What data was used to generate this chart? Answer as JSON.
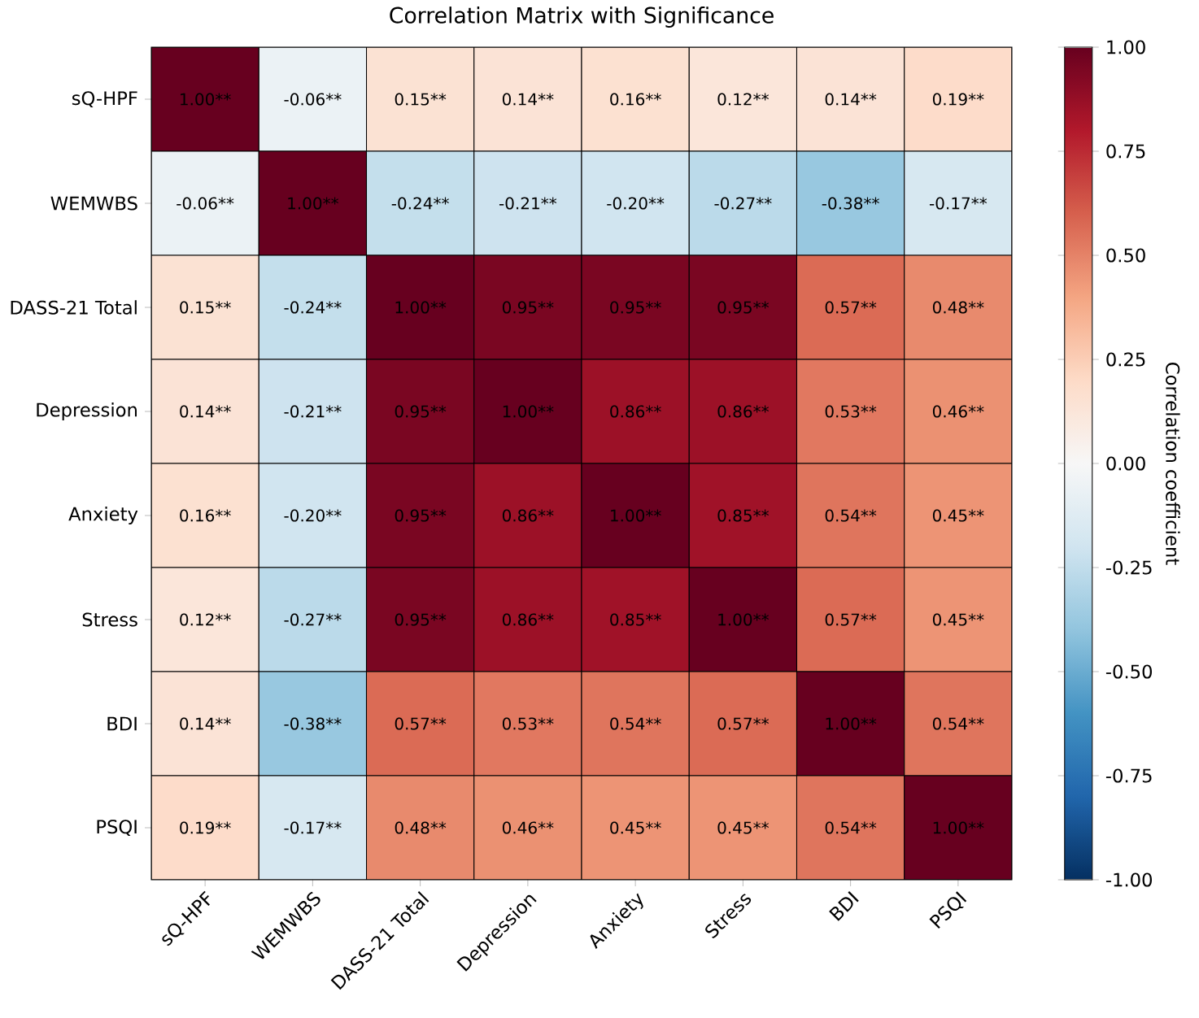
{
  "chart_data": {
    "type": "heatmap",
    "title": "Correlation Matrix with Significance",
    "clabel": "Correlation coefficient",
    "categories": [
      "sQ-HPF",
      "WEMWBS",
      "DASS-21 Total",
      "Depression",
      "Anxiety",
      "Stress",
      "BDI",
      "PSQI"
    ],
    "y_categories": [
      "sQ-HPF",
      "WEMWBS",
      "DASS-21 Total",
      "Depression",
      "Anxiety",
      "Stress",
      "BDI",
      "PSQI"
    ],
    "cells": [
      [
        1.0,
        -0.06,
        0.15,
        0.14,
        0.16,
        0.12,
        0.14,
        0.19
      ],
      [
        -0.06,
        1.0,
        -0.24,
        -0.21,
        -0.2,
        -0.27,
        -0.38,
        -0.17
      ],
      [
        0.15,
        -0.24,
        1.0,
        0.95,
        0.95,
        0.95,
        0.57,
        0.48
      ],
      [
        0.14,
        -0.21,
        0.95,
        1.0,
        0.86,
        0.86,
        0.53,
        0.46
      ],
      [
        0.16,
        -0.2,
        0.95,
        0.86,
        1.0,
        0.85,
        0.54,
        0.45
      ],
      [
        0.12,
        -0.27,
        0.95,
        0.86,
        0.85,
        1.0,
        0.57,
        0.45
      ],
      [
        0.14,
        -0.38,
        0.57,
        0.53,
        0.54,
        0.57,
        1.0,
        0.54
      ],
      [
        0.19,
        -0.17,
        0.48,
        0.46,
        0.45,
        0.45,
        0.54,
        1.0
      ]
    ],
    "cell_labels": [
      [
        "1.00**",
        "-0.06**",
        "0.15**",
        "0.14**",
        "0.16**",
        "0.12**",
        "0.14**",
        "0.19**"
      ],
      [
        "-0.06**",
        "1.00**",
        "-0.24**",
        "-0.21**",
        "-0.20**",
        "-0.27**",
        "-0.38**",
        "-0.17**"
      ],
      [
        "0.15**",
        "-0.24**",
        "1.00**",
        "0.95**",
        "0.95**",
        "0.95**",
        "0.57**",
        "0.48**"
      ],
      [
        "0.14**",
        "-0.21**",
        "0.95**",
        "1.00**",
        "0.86**",
        "0.86**",
        "0.53**",
        "0.46**"
      ],
      [
        "0.16**",
        "-0.20**",
        "0.95**",
        "0.86**",
        "1.00**",
        "0.85**",
        "0.54**",
        "0.45**"
      ],
      [
        "0.12**",
        "-0.27**",
        "0.95**",
        "0.86**",
        "0.85**",
        "1.00**",
        "0.57**",
        "0.45**"
      ],
      [
        "0.14**",
        "-0.38**",
        "0.57**",
        "0.53**",
        "0.54**",
        "0.57**",
        "1.00**",
        "0.54**"
      ],
      [
        "0.19**",
        "-0.17**",
        "0.48**",
        "0.46**",
        "0.45**",
        "0.45**",
        "0.54**",
        "1.00**"
      ]
    ],
    "clim": [
      -1,
      1
    ],
    "cticks": [
      {
        "value": -1,
        "label": "-1.00"
      },
      {
        "value": -0.75,
        "label": "-0.75"
      },
      {
        "value": -0.5,
        "label": "-0.50"
      },
      {
        "value": -0.25,
        "label": "-0.25"
      },
      {
        "value": 0,
        "label": "0.00"
      },
      {
        "value": 0.25,
        "label": "0.25"
      },
      {
        "value": 0.5,
        "label": "0.50"
      },
      {
        "value": 0.75,
        "label": "0.75"
      },
      {
        "value": 1,
        "label": "1.00"
      }
    ]
  }
}
